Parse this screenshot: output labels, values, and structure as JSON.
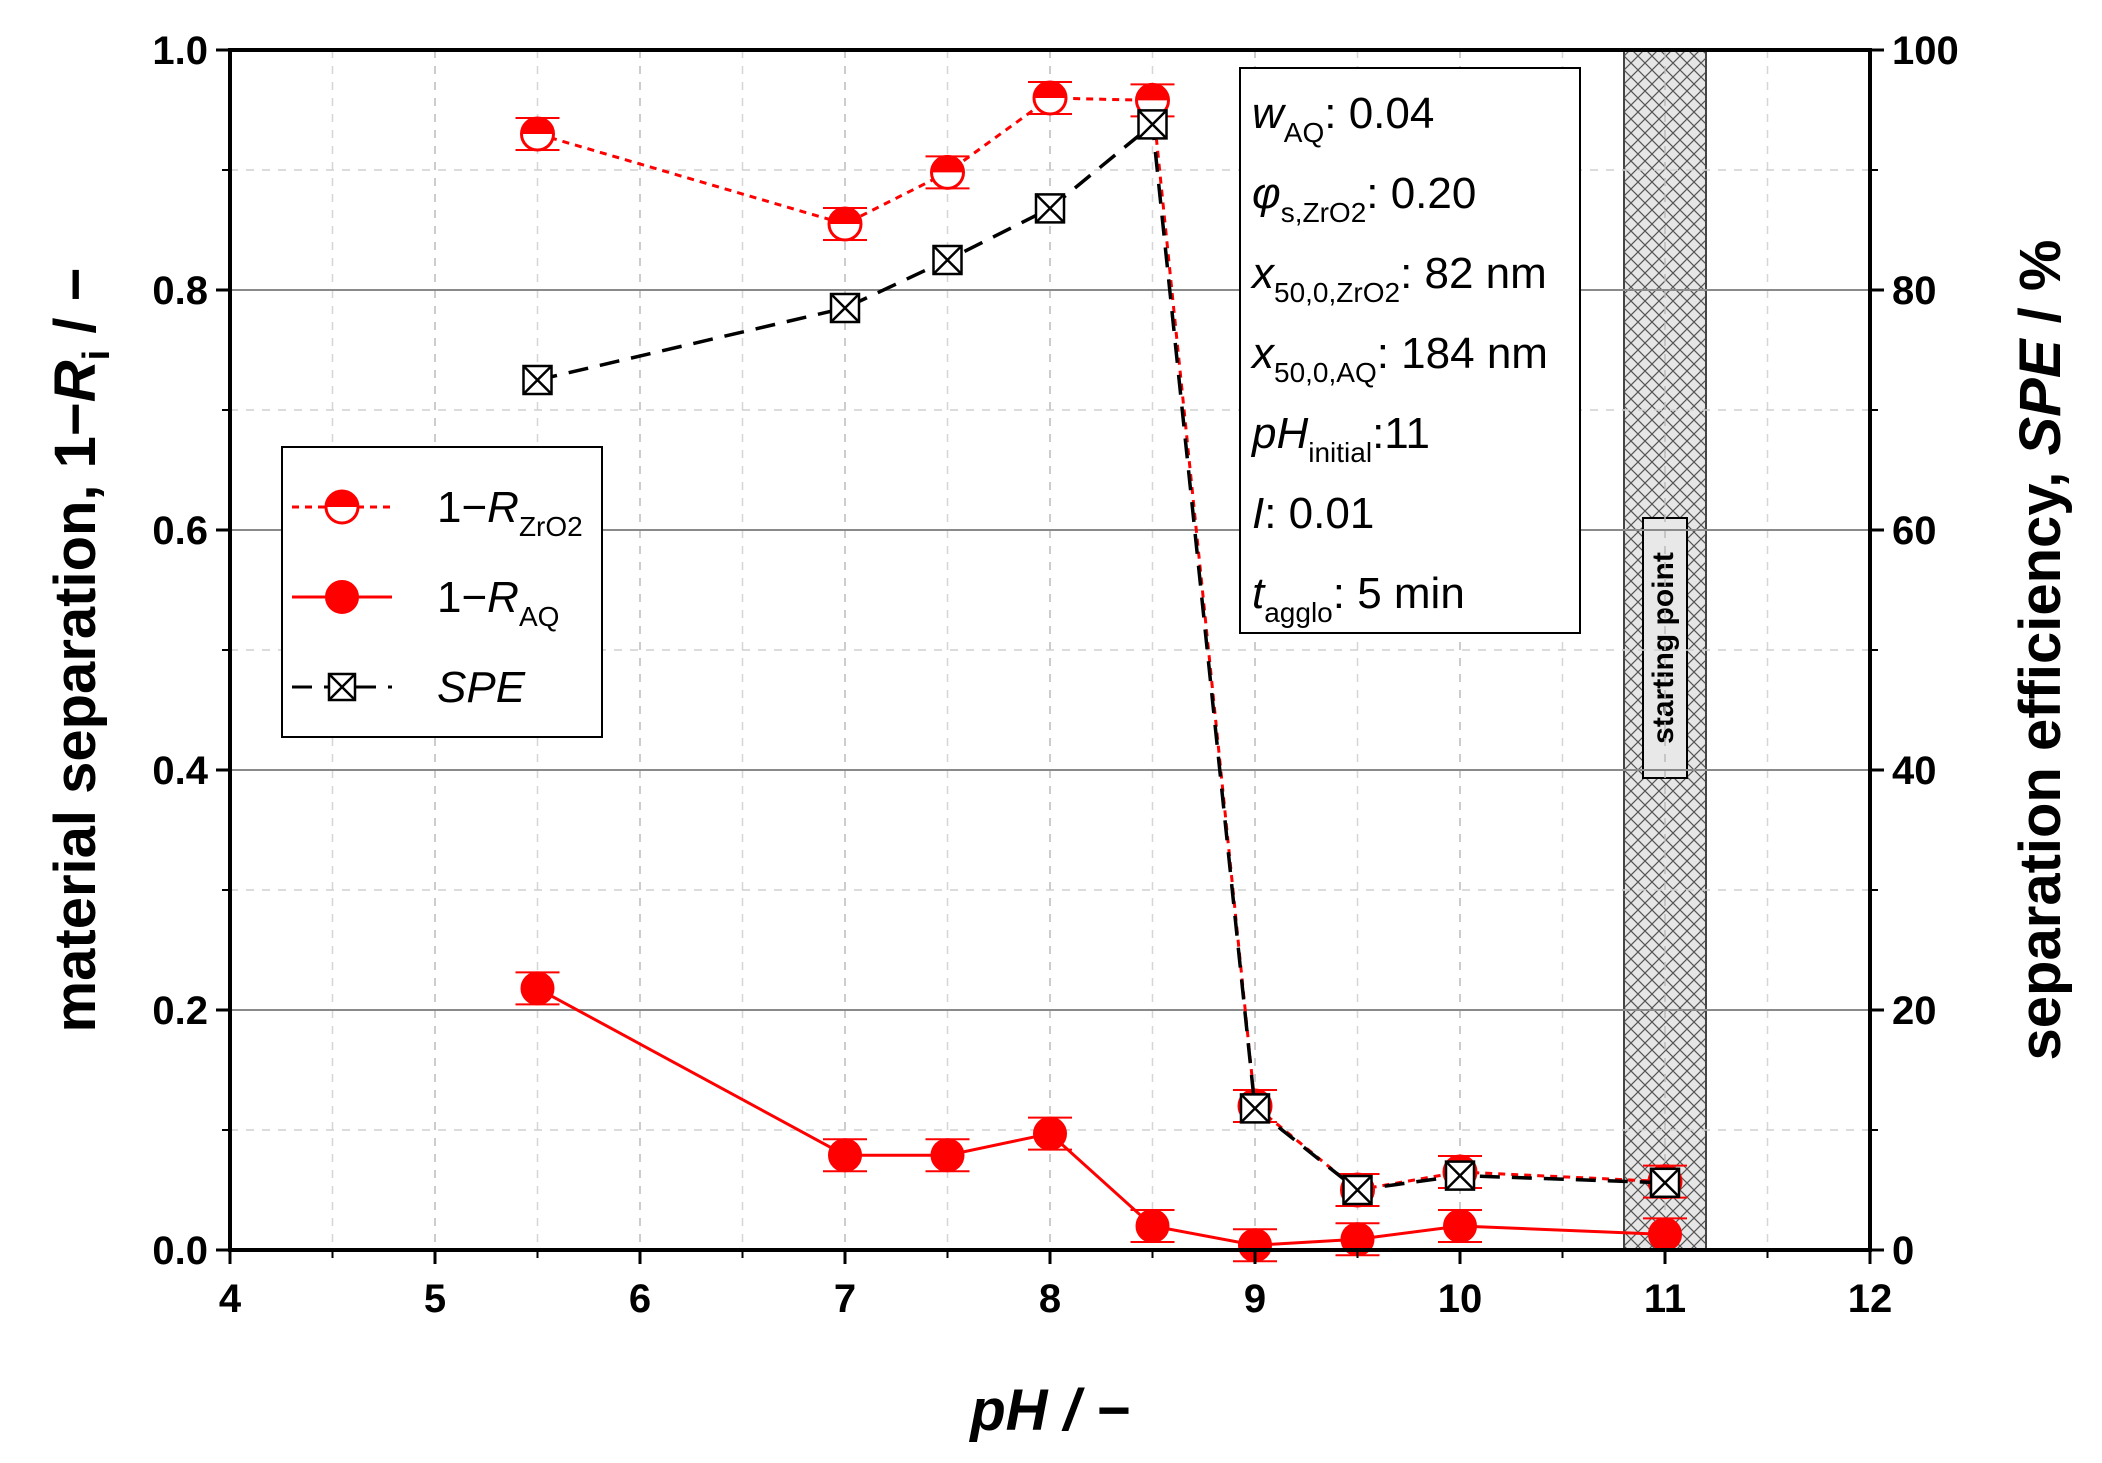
{
  "chart_data": {
    "type": "line",
    "x": [
      5.5,
      7,
      7.5,
      8,
      8.5,
      9,
      9.5,
      10,
      11
    ],
    "xlim": [
      4,
      12
    ],
    "ylim_left": [
      0,
      1.0
    ],
    "ylim_right": [
      0,
      100
    ],
    "x_ticks": [
      "4",
      "5",
      "6",
      "7",
      "8",
      "9",
      "10",
      "11",
      "12"
    ],
    "y_left_ticks": [
      "0.0",
      "0.2",
      "0.4",
      "0.6",
      "0.8",
      "1.0"
    ],
    "y_right_ticks": [
      "0",
      "20",
      "40",
      "60",
      "80",
      "100"
    ],
    "xlabel": "pH / −",
    "ylabel_left": {
      "prefix": "material separation, 1−",
      "var": "R",
      "sub": "i",
      "suffix": " / −"
    },
    "ylabel_right": {
      "prefix": "separation efficiency, ",
      "var": "SPE",
      "suffix": " / %"
    },
    "series": [
      {
        "name": "1−R_ZrO2",
        "axis": "left",
        "color": "#ff0000",
        "style": "dotted",
        "marker": "half-filled-circle",
        "values": [
          0.93,
          0.855,
          0.898,
          0.96,
          0.958,
          0.12,
          0.05,
          0.065,
          0.057
        ]
      },
      {
        "name": "1−R_AQ",
        "axis": "left",
        "color": "#ff0000",
        "style": "solid",
        "marker": "filled-circle",
        "values": [
          0.218,
          0.079,
          0.079,
          0.097,
          0.02,
          0.004,
          0.009,
          0.02,
          0.013
        ]
      },
      {
        "name": "SPE",
        "axis": "right",
        "color": "#000000",
        "style": "dashed",
        "marker": "crossed-square",
        "values": [
          72.5,
          78.5,
          82.5,
          86.8,
          93.8,
          11.8,
          5.0,
          6.2,
          5.6
        ]
      }
    ],
    "legend": [
      {
        "prefix": "1−",
        "var": "R",
        "sub": "ZrO2"
      },
      {
        "prefix": "1−",
        "var": "R",
        "sub": "AQ"
      },
      {
        "prefix": "",
        "var": "SPE",
        "sub": ""
      }
    ],
    "annotations": [
      {
        "var": "w",
        "sub": "AQ",
        "value": ": 0.04"
      },
      {
        "var": "φ",
        "sub": "s,ZrO2",
        "value": ": 0.20"
      },
      {
        "var": "x",
        "sub": "50,0,ZrO2",
        "value": ": 82 nm"
      },
      {
        "var": "x",
        "sub": "50,0,AQ",
        "value": ": 184 nm"
      },
      {
        "var": "pH",
        "sub": "initial",
        "value": ":11"
      },
      {
        "var": "I",
        "sub": "",
        "value": ": 0.01"
      },
      {
        "var": "t",
        "sub": "agglo",
        "value": ": 5 min"
      }
    ],
    "shaded_region": {
      "x_range": [
        10.8,
        11.2
      ],
      "label": "starting point"
    },
    "colors": {
      "red": "#ff0000",
      "black": "#000000",
      "hatch_fill": "#e6e6e6",
      "grid": "#999999"
    }
  }
}
